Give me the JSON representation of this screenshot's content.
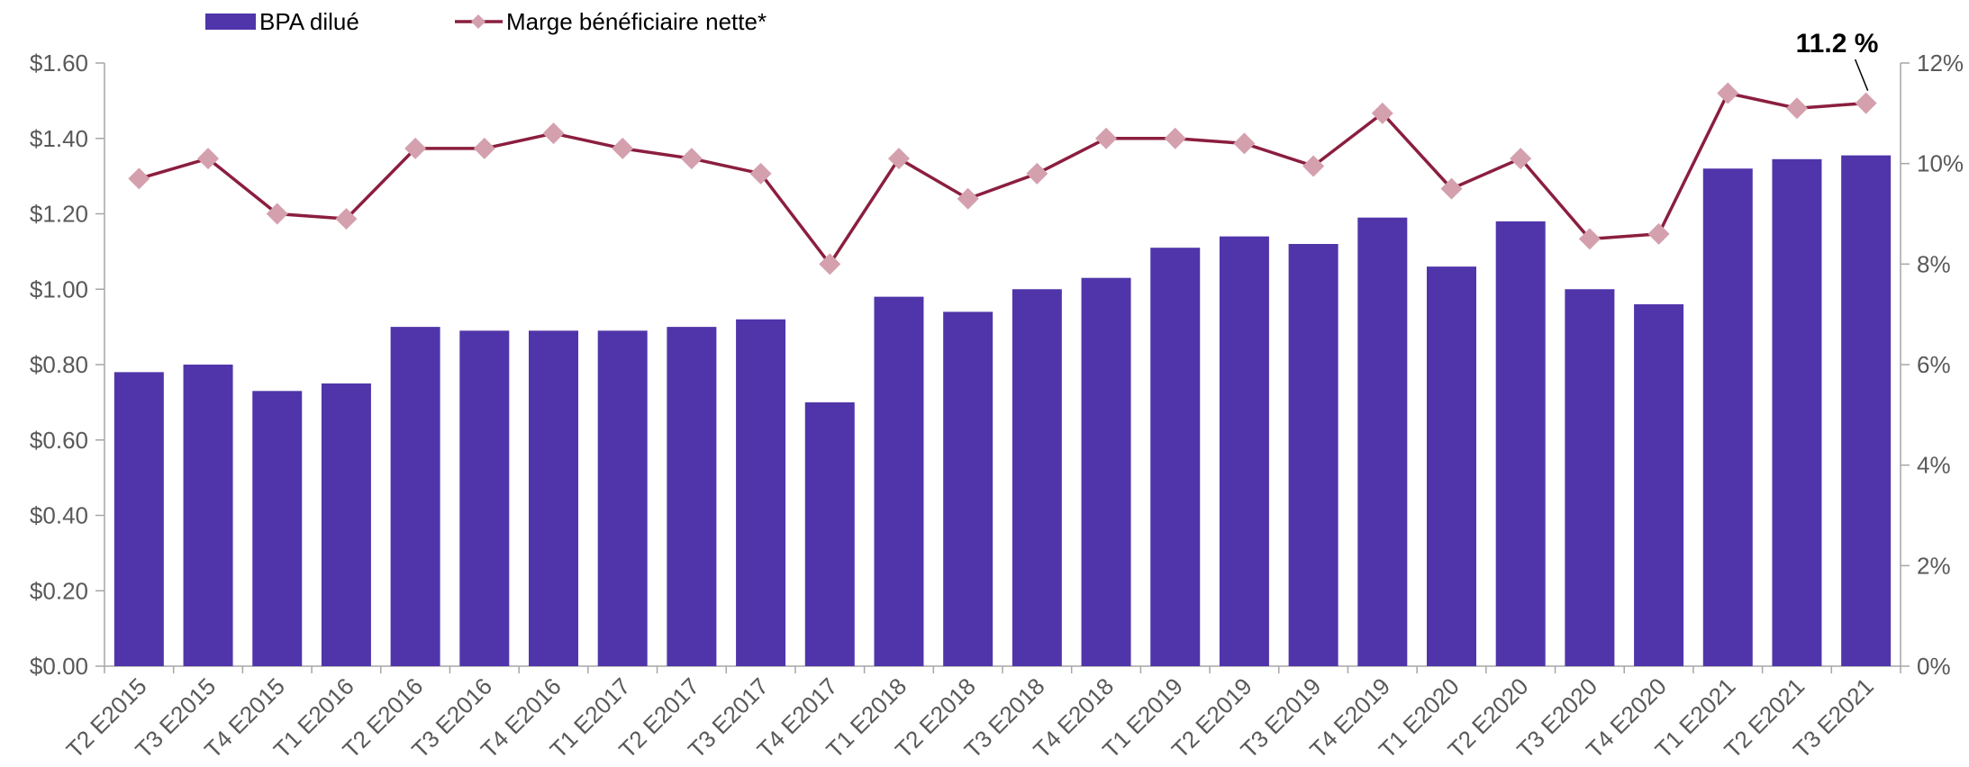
{
  "chart_data": {
    "type": "bar",
    "title": "",
    "categories": [
      "T2 E2015",
      "T3 E2015",
      "T4 E2015",
      "T1 E2016",
      "T2 E2016",
      "T3 E2016",
      "T4 E2016",
      "T1 E2017",
      "T2 E2017",
      "T3 E2017",
      "T4 E2017",
      "T1 E2018",
      "T2 E2018",
      "T3 E2018",
      "T4 E2018",
      "T1 E2019",
      "T2 E2019",
      "T3 E2019",
      "T4 E2019",
      "T1 E2020",
      "T2 E2020",
      "T3 E2020",
      "T4 E2020",
      "T1 E2021",
      "T2 E2021",
      "T3 E2021"
    ],
    "series": [
      {
        "name": "BPA dilué",
        "type": "bar",
        "axis": "left",
        "color": "#5035AA",
        "values": [
          0.78,
          0.8,
          0.73,
          0.75,
          0.9,
          0.89,
          0.89,
          0.89,
          0.9,
          0.92,
          0.7,
          0.98,
          0.94,
          1.0,
          1.03,
          1.11,
          1.14,
          1.12,
          1.19,
          1.06,
          1.18,
          1.0,
          0.96,
          1.32,
          1.345,
          1.355
        ]
      },
      {
        "name": "Marge bénéficiaire nette*",
        "type": "line",
        "axis": "right",
        "color": "#8B1E3F",
        "marker_color": "#D4A0AE",
        "values": [
          9.7,
          10.1,
          9.0,
          8.9,
          10.3,
          10.3,
          10.6,
          10.3,
          10.1,
          9.8,
          8.0,
          10.1,
          9.3,
          9.8,
          10.5,
          10.5,
          10.4,
          9.95,
          11.0,
          9.5,
          10.1,
          8.5,
          8.6,
          11.4,
          11.1,
          11.2
        ]
      }
    ],
    "y_left": {
      "range": [
        0,
        1.6
      ],
      "ticks": [
        0,
        0.2,
        0.4,
        0.6,
        0.8,
        1.0,
        1.2,
        1.4,
        1.6
      ],
      "tick_labels": [
        "$0.00",
        "$0.20",
        "$0.40",
        "$0.60",
        "$0.80",
        "$1.00",
        "$1.20",
        "$1.40",
        "$1.60"
      ]
    },
    "y_right": {
      "range": [
        0,
        12
      ],
      "ticks": [
        0,
        2,
        4,
        6,
        8,
        10,
        12
      ],
      "tick_labels": [
        "0%",
        "2%",
        "4%",
        "6%",
        "8%",
        "10%",
        "12%"
      ]
    },
    "legend": {
      "placement": "top-left",
      "entries": [
        "BPA dilué",
        "Marge bénéficiaire nette*"
      ]
    },
    "annotation": {
      "text": "11.2 %",
      "category": "T3 E2021"
    },
    "grid": false
  }
}
